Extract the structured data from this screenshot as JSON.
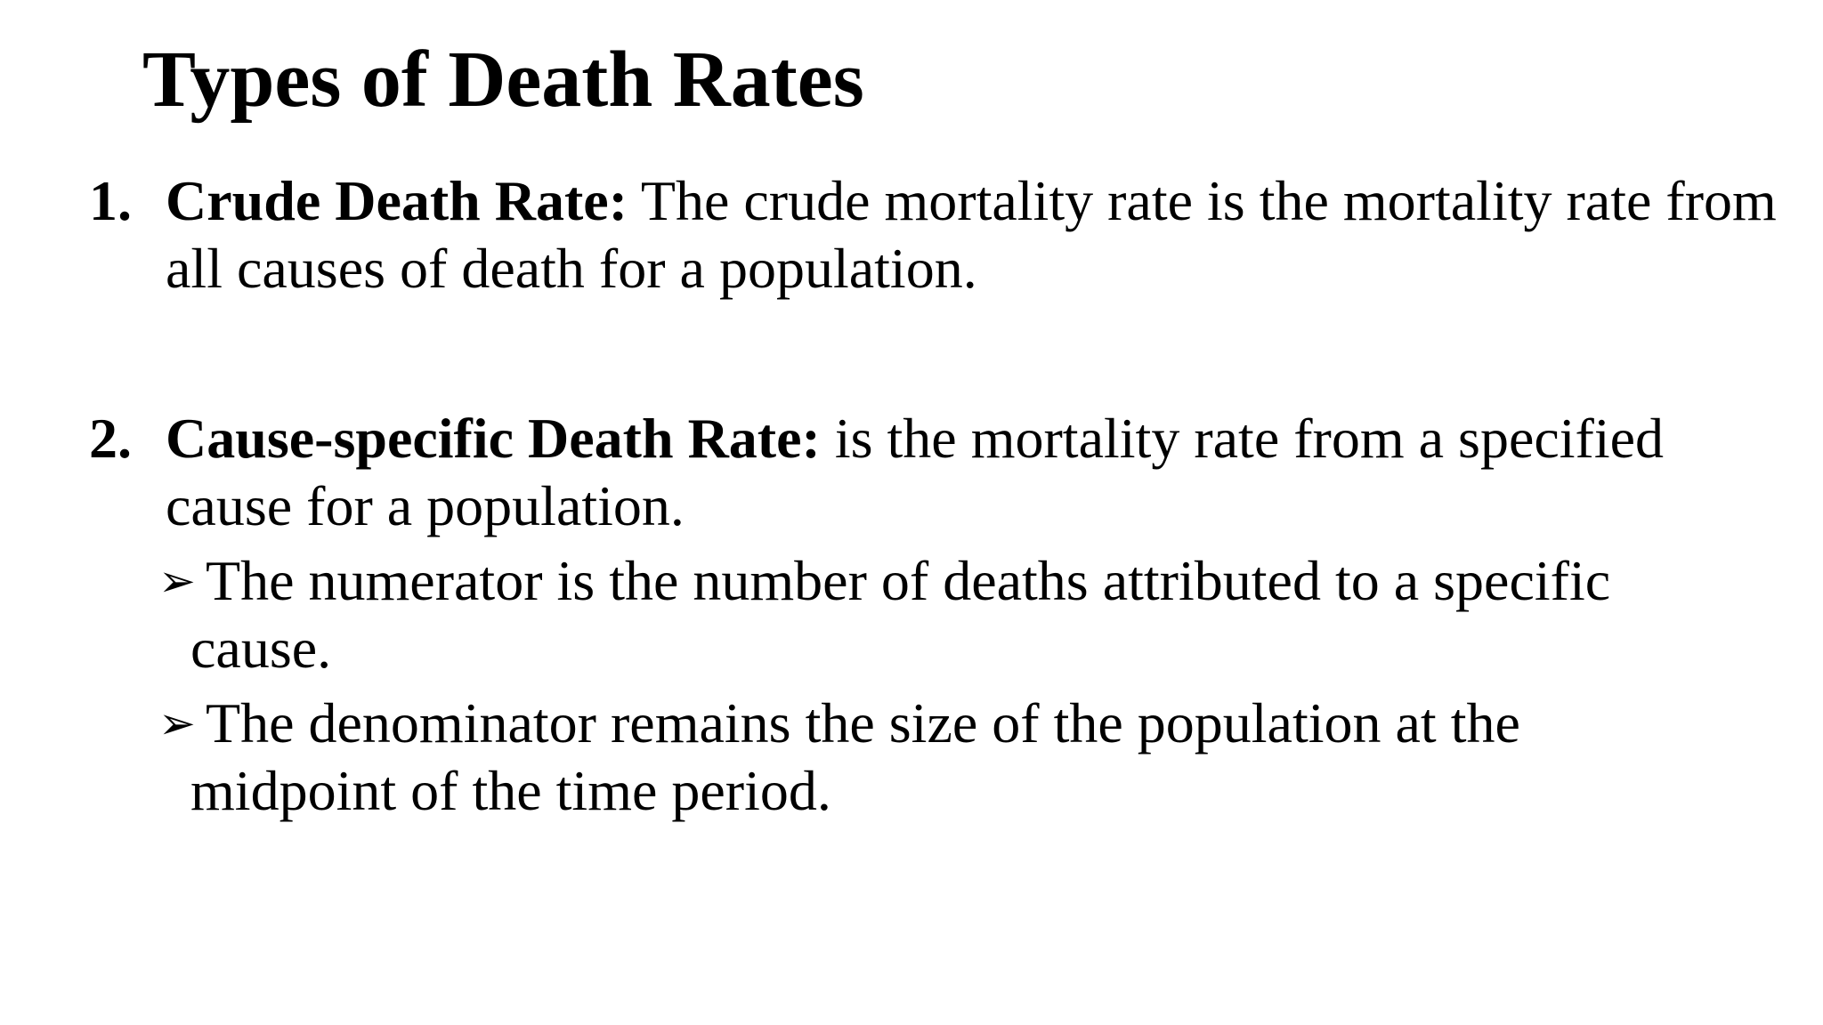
{
  "slide": {
    "title": "Types of Death Rates",
    "items": [
      {
        "number": "1.",
        "term": "Crude Death Rate:",
        "text": " The crude mortality rate is the mortality rate from all causes of death for a population."
      },
      {
        "number": "2.",
        "term": "Cause-specific Death Rate:",
        "text": " is the mortality rate from a specified cause for a population.",
        "bullet_icon": "arrow-bullet-icon",
        "subitems": [
          {
            "marker": "➢",
            "text": "The numerator is the number of deaths attributed to a specific cause."
          },
          {
            "marker": "➢",
            "text": "The denominator remains the size of the population at the midpoint of the time period."
          }
        ]
      }
    ]
  }
}
